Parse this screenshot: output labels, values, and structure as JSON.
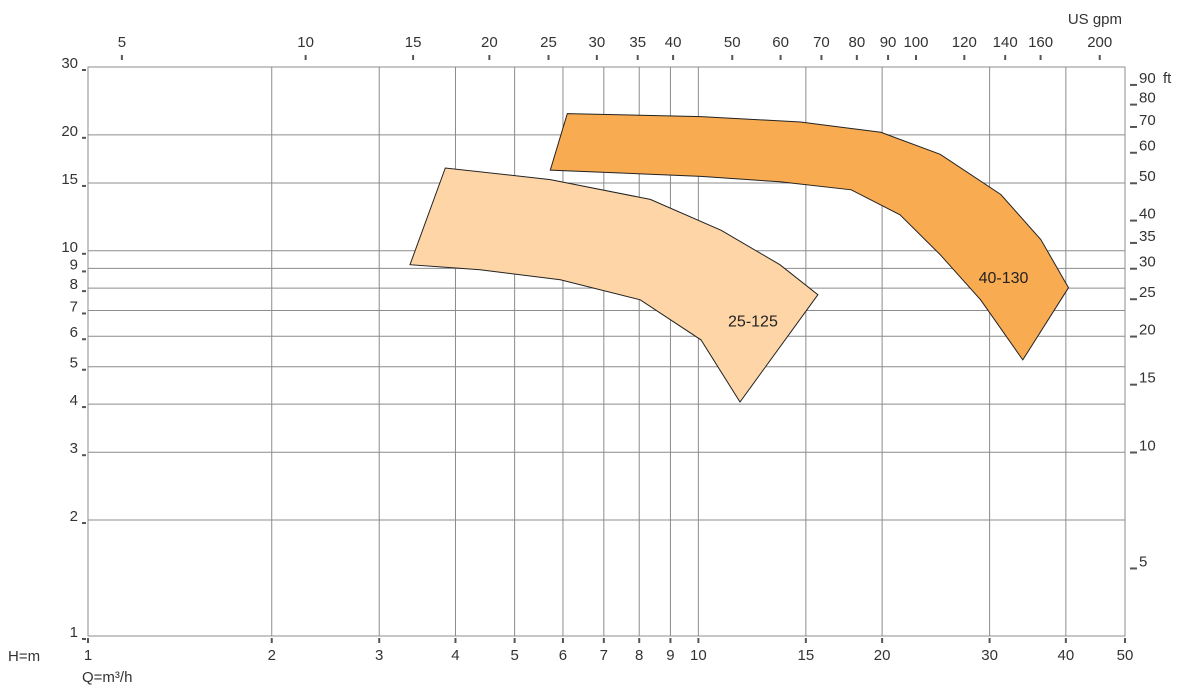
{
  "chart_data": {
    "type": "region",
    "xlabel": "Q=m³/h",
    "ylabel": "H=m",
    "x2label": "US gpm",
    "y2label": "ft",
    "log_scale": true,
    "grid": true,
    "xlim": [
      1,
      50
    ],
    "xticks": [
      1,
      2,
      3,
      4,
      5,
      6,
      7,
      8,
      9,
      10,
      15,
      20,
      30,
      40,
      50
    ],
    "ylim": [
      1,
      30
    ],
    "yticks": [
      1,
      2,
      3,
      4,
      5,
      6,
      7,
      8,
      9,
      10,
      15,
      20,
      30
    ],
    "x2lim": [
      4.4,
      220
    ],
    "x2ticks": [
      5,
      10,
      15,
      20,
      25,
      30,
      35,
      40,
      50,
      60,
      70,
      80,
      90,
      100,
      120,
      140,
      160,
      200
    ],
    "y2lim": [
      3.28,
      98.4
    ],
    "y2ticks": [
      5,
      10,
      15,
      20,
      25,
      30,
      35,
      40,
      50,
      60,
      70,
      80,
      90
    ],
    "series": [
      {
        "name": "25-125",
        "color": "#fdd5a6",
        "x": [
          3.37,
          3.85,
          5.72,
          8.34,
          10.9,
          13.6,
          15.7,
          11.7,
          10.1,
          8.03,
          5.94,
          4.39
        ],
        "y": [
          9.2,
          16.4,
          15.3,
          13.6,
          11.3,
          9.2,
          7.69,
          4.05,
          5.87,
          7.46,
          8.41,
          8.93
        ]
      },
      {
        "name": "40-130",
        "color": "#f9ab52",
        "x": [
          5.72,
          6.1,
          10.1,
          14.7,
          19.9,
          24.9,
          31.3,
          36.4,
          40.4,
          34.0,
          29.0,
          24.9,
          21.4,
          17.8,
          13.6,
          10.1
        ],
        "y": [
          16.2,
          22.7,
          22.3,
          21.6,
          20.3,
          17.8,
          14.0,
          10.7,
          8.02,
          5.21,
          7.46,
          9.77,
          12.4,
          14.4,
          15.1,
          15.6
        ]
      }
    ]
  }
}
